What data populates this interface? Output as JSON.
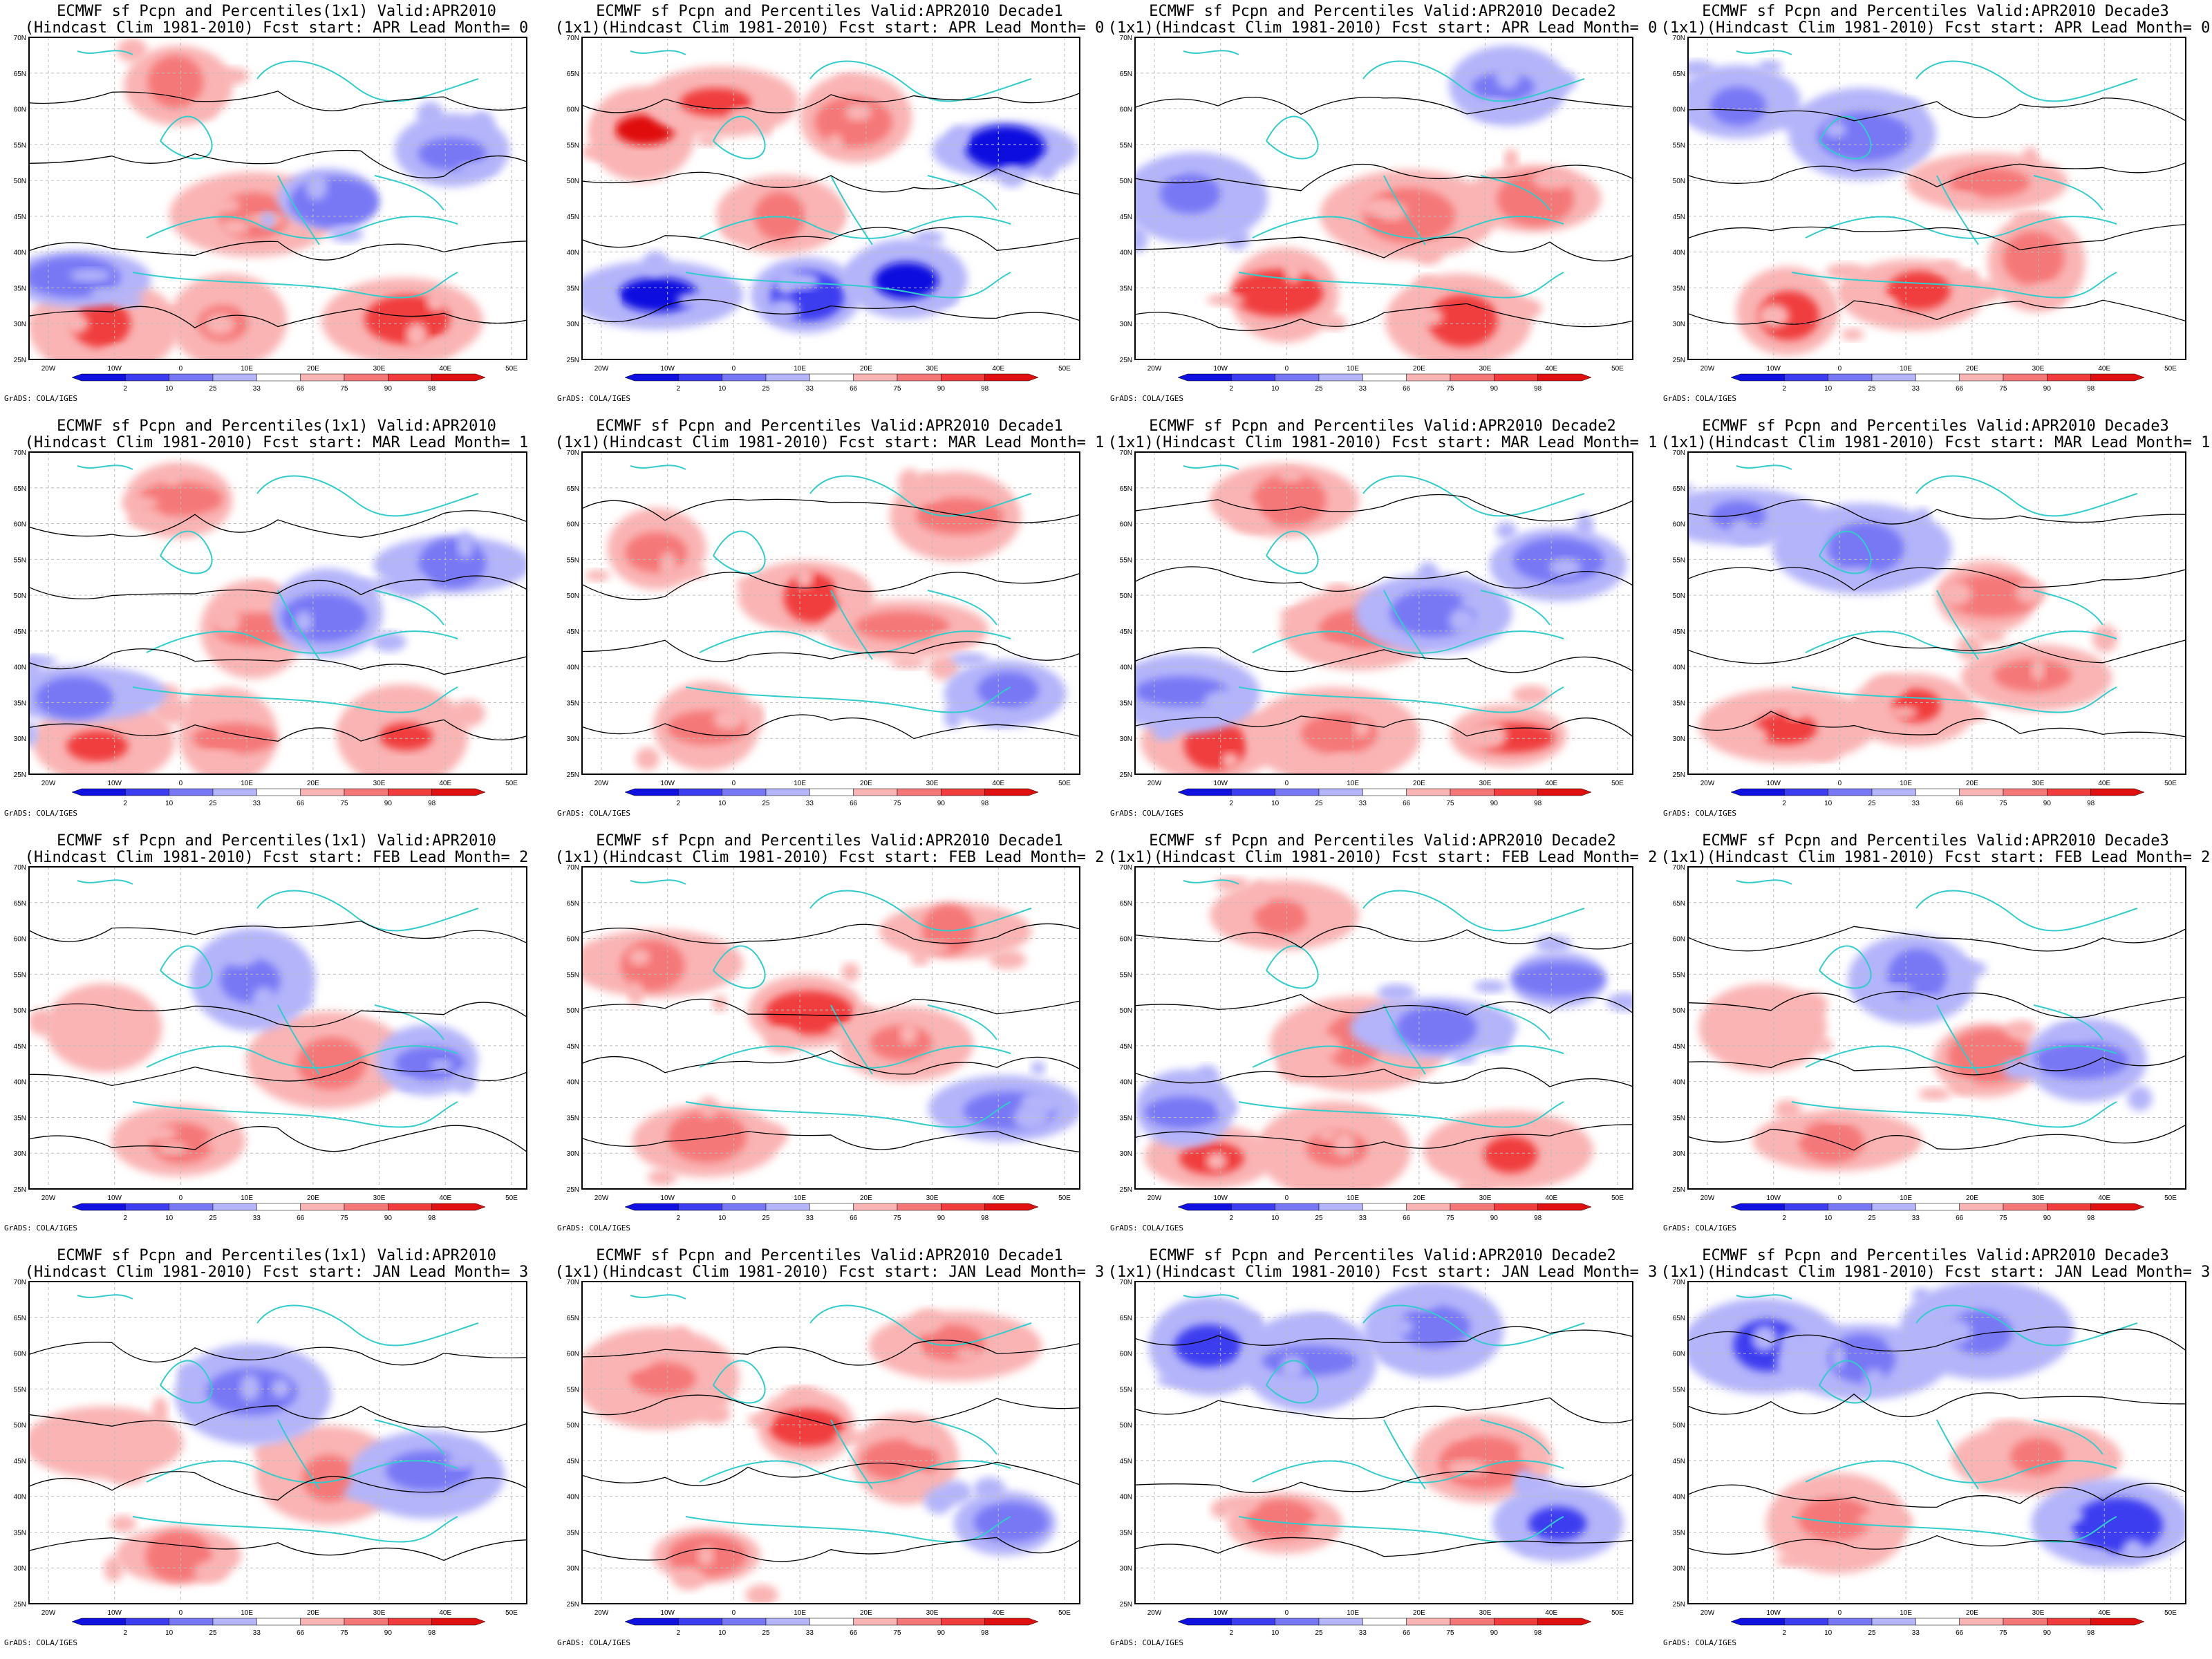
{
  "figure": {
    "credit": "GrADS: COLA/IGES",
    "lat_labels": [
      "70N",
      "65N",
      "60N",
      "55N",
      "50N",
      "45N",
      "40N",
      "35N",
      "30N",
      "25N"
    ],
    "lon_labels": [
      "20W",
      "10W",
      "0",
      "10E",
      "20E",
      "30E",
      "40E",
      "50E"
    ],
    "colorbar_labels": [
      "2",
      "10",
      "25",
      "33",
      "66",
      "75",
      "90",
      "98"
    ],
    "colorbar_colors": [
      "#1010e0",
      "#3c3cf0",
      "#7878f5",
      "#b4b4fa",
      "#ffffff",
      "#fab4b4",
      "#f57878",
      "#f03c3c",
      "#e01010"
    ],
    "contour_color": "#000000",
    "coast_color": "#33cccc"
  },
  "panels": [
    {
      "title1": "ECMWF sf Pcpn and Percentiles(1x1) Valid:APR2010",
      "title2": "(Hindcast Clim 1981-2010) Fcst start: APR  Lead Month= 0",
      "pattern": "mixed"
    },
    {
      "title1": "ECMWF sf Pcpn and Percentiles Valid:APR2010 Decade1",
      "title2": "(1x1)(Hindcast Clim 1981-2010) Fcst start: APR  Lead Month= 0",
      "pattern": "strong"
    },
    {
      "title1": "ECMWF sf Pcpn and Percentiles Valid:APR2010 Decade2",
      "title2": "(1x1)(Hindcast Clim 1981-2010) Fcst start: APR  Lead Month= 0",
      "pattern": "blueW"
    },
    {
      "title1": "ECMWF sf Pcpn and Percentiles Valid:APR2010 Decade3",
      "title2": "(1x1)(Hindcast Clim 1981-2010) Fcst start: APR  Lead Month= 0",
      "pattern": "redS"
    },
    {
      "title1": "ECMWF sf Pcpn and Percentiles(1x1) Valid:APR2010",
      "title2": "(Hindcast Clim 1981-2010) Fcst start: MAR  Lead Month= 1",
      "pattern": "mixed"
    },
    {
      "title1": "ECMWF sf Pcpn and Percentiles Valid:APR2010 Decade1",
      "title2": "(1x1)(Hindcast Clim 1981-2010) Fcst start: MAR  Lead Month= 1",
      "pattern": "redC"
    },
    {
      "title1": "ECMWF sf Pcpn and Percentiles Valid:APR2010 Decade2",
      "title2": "(1x1)(Hindcast Clim 1981-2010) Fcst start: MAR  Lead Month= 1",
      "pattern": "mixed"
    },
    {
      "title1": "ECMWF sf Pcpn and Percentiles Valid:APR2010 Decade3",
      "title2": "(1x1)(Hindcast Clim 1981-2010) Fcst start: MAR  Lead Month= 1",
      "pattern": "redS"
    },
    {
      "title1": "ECMWF sf Pcpn and Percentiles(1x1) Valid:APR2010",
      "title2": "(Hindcast Clim 1981-2010) Fcst start: FEB  Lead Month= 2",
      "pattern": "light"
    },
    {
      "title1": "ECMWF sf Pcpn and Percentiles Valid:APR2010 Decade1",
      "title2": "(1x1)(Hindcast Clim 1981-2010) Fcst start: FEB  Lead Month= 2",
      "pattern": "redC"
    },
    {
      "title1": "ECMWF sf Pcpn and Percentiles Valid:APR2010 Decade2",
      "title2": "(1x1)(Hindcast Clim 1981-2010) Fcst start: FEB  Lead Month= 2",
      "pattern": "mixed"
    },
    {
      "title1": "ECMWF sf Pcpn and Percentiles Valid:APR2010 Decade3",
      "title2": "(1x1)(Hindcast Clim 1981-2010) Fcst start: FEB  Lead Month= 2",
      "pattern": "light"
    },
    {
      "title1": "ECMWF sf Pcpn and Percentiles(1x1) Valid:APR2010",
      "title2": "(Hindcast Clim 1981-2010) Fcst start: JAN  Lead Month= 3",
      "pattern": "light"
    },
    {
      "title1": "ECMWF sf Pcpn and Percentiles Valid:APR2010 Decade1",
      "title2": "(1x1)(Hindcast Clim 1981-2010) Fcst start: JAN  Lead Month= 3",
      "pattern": "redC"
    },
    {
      "title1": "ECMWF sf Pcpn and Percentiles Valid:APR2010 Decade2",
      "title2": "(1x1)(Hindcast Clim 1981-2010) Fcst start: JAN  Lead Month= 3",
      "pattern": "blueN"
    },
    {
      "title1": "ECMWF sf Pcpn and Percentiles Valid:APR2010 Decade3",
      "title2": "(1x1)(Hindcast Clim 1981-2010) Fcst start: JAN  Lead Month= 3",
      "pattern": "blueN"
    }
  ]
}
